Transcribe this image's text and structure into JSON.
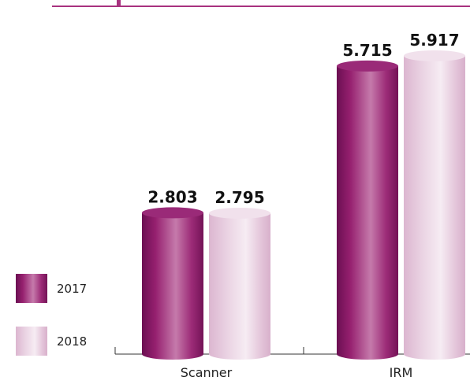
{
  "colors": {
    "s2017": "#8e1b6e",
    "s2018": "#e9cfe2",
    "rule": "#a8327f",
    "axis": "#333333"
  },
  "chart_data": {
    "type": "bar",
    "style": "cylinder",
    "categories": [
      "Scanner",
      "IRM"
    ],
    "series": [
      {
        "name": "2017",
        "values": [
          2803,
          5715
        ],
        "labels": [
          "2.803",
          "5.715"
        ]
      },
      {
        "name": "2018",
        "values": [
          2795,
          5917
        ],
        "labels": [
          "2.795",
          "5.917"
        ]
      }
    ],
    "ylim": [
      0,
      6400
    ],
    "grid": false,
    "legend": "bottom-left"
  }
}
